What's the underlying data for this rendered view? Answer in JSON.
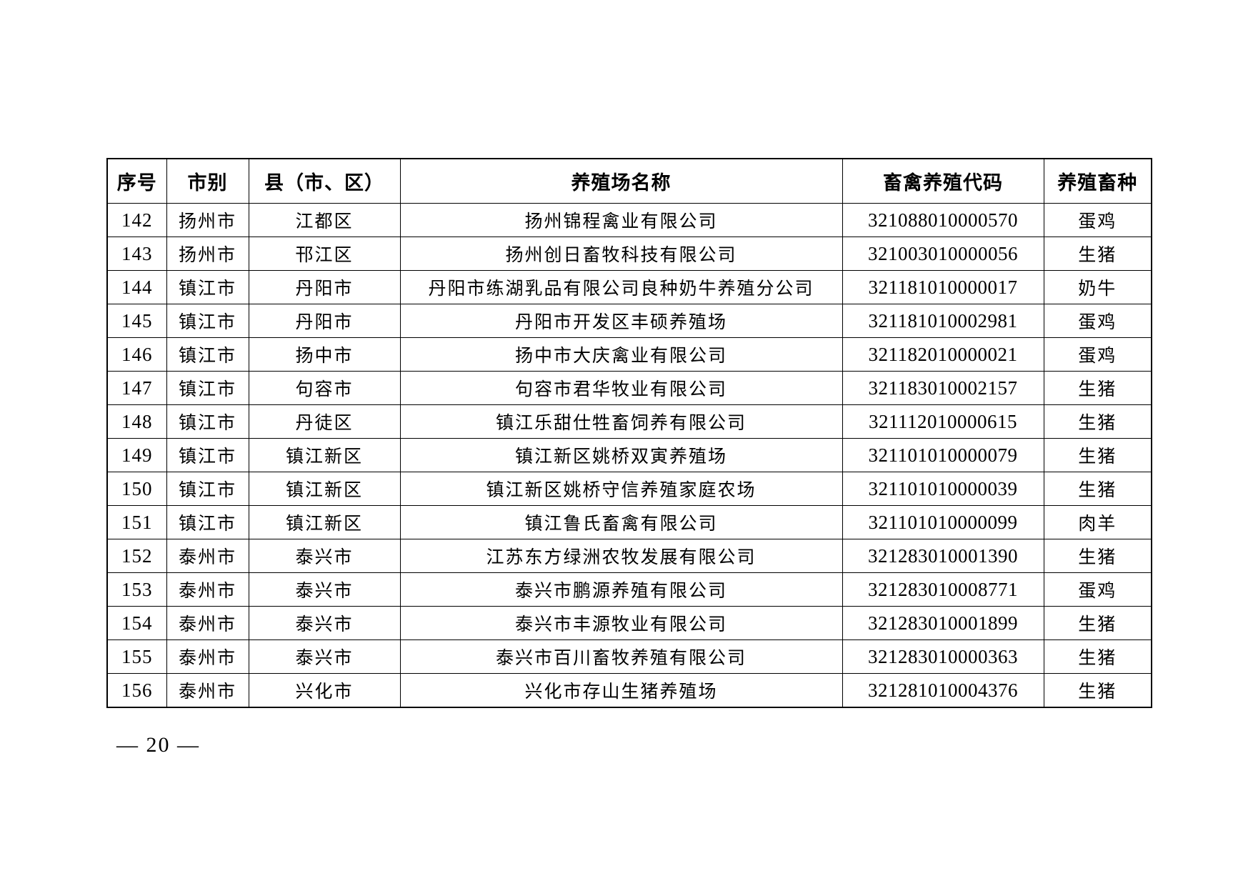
{
  "table": {
    "columns": [
      "序号",
      "市别",
      "县（市、区）",
      "养殖场名称",
      "畜禽养殖代码",
      "养殖畜种"
    ],
    "rows": [
      {
        "index": "142",
        "city": "扬州市",
        "county": "江都区",
        "farm": "扬州锦程禽业有限公司",
        "code": "321088010000570",
        "species": "蛋鸡"
      },
      {
        "index": "143",
        "city": "扬州市",
        "county": "邗江区",
        "farm": "扬州创日畜牧科技有限公司",
        "code": "321003010000056",
        "species": "生猪"
      },
      {
        "index": "144",
        "city": "镇江市",
        "county": "丹阳市",
        "farm": "丹阳市练湖乳品有限公司良种奶牛养殖分公司",
        "code": "321181010000017",
        "species": "奶牛"
      },
      {
        "index": "145",
        "city": "镇江市",
        "county": "丹阳市",
        "farm": "丹阳市开发区丰硕养殖场",
        "code": "321181010002981",
        "species": "蛋鸡"
      },
      {
        "index": "146",
        "city": "镇江市",
        "county": "扬中市",
        "farm": "扬中市大庆禽业有限公司",
        "code": "321182010000021",
        "species": "蛋鸡"
      },
      {
        "index": "147",
        "city": "镇江市",
        "county": "句容市",
        "farm": "句容市君华牧业有限公司",
        "code": "321183010002157",
        "species": "生猪"
      },
      {
        "index": "148",
        "city": "镇江市",
        "county": "丹徒区",
        "farm": "镇江乐甜仕牲畜饲养有限公司",
        "code": "321112010000615",
        "species": "生猪"
      },
      {
        "index": "149",
        "city": "镇江市",
        "county": "镇江新区",
        "farm": "镇江新区姚桥双寅养殖场",
        "code": "321101010000079",
        "species": "生猪"
      },
      {
        "index": "150",
        "city": "镇江市",
        "county": "镇江新区",
        "farm": "镇江新区姚桥守信养殖家庭农场",
        "code": "321101010000039",
        "species": "生猪"
      },
      {
        "index": "151",
        "city": "镇江市",
        "county": "镇江新区",
        "farm": "镇江鲁氏畜禽有限公司",
        "code": "321101010000099",
        "species": "肉羊"
      },
      {
        "index": "152",
        "city": "泰州市",
        "county": "泰兴市",
        "farm": "江苏东方绿洲农牧发展有限公司",
        "code": "321283010001390",
        "species": "生猪"
      },
      {
        "index": "153",
        "city": "泰州市",
        "county": "泰兴市",
        "farm": "泰兴市鹏源养殖有限公司",
        "code": "321283010008771",
        "species": "蛋鸡"
      },
      {
        "index": "154",
        "city": "泰州市",
        "county": "泰兴市",
        "farm": "泰兴市丰源牧业有限公司",
        "code": "321283010001899",
        "species": "生猪"
      },
      {
        "index": "155",
        "city": "泰州市",
        "county": "泰兴市",
        "farm": "泰兴市百川畜牧养殖有限公司",
        "code": "321283010000363",
        "species": "生猪"
      },
      {
        "index": "156",
        "city": "泰州市",
        "county": "兴化市",
        "farm": "兴化市存山生猪养殖场",
        "code": "321281010004376",
        "species": "生猪"
      }
    ]
  },
  "footer": {
    "page_number": "— 20 —"
  }
}
